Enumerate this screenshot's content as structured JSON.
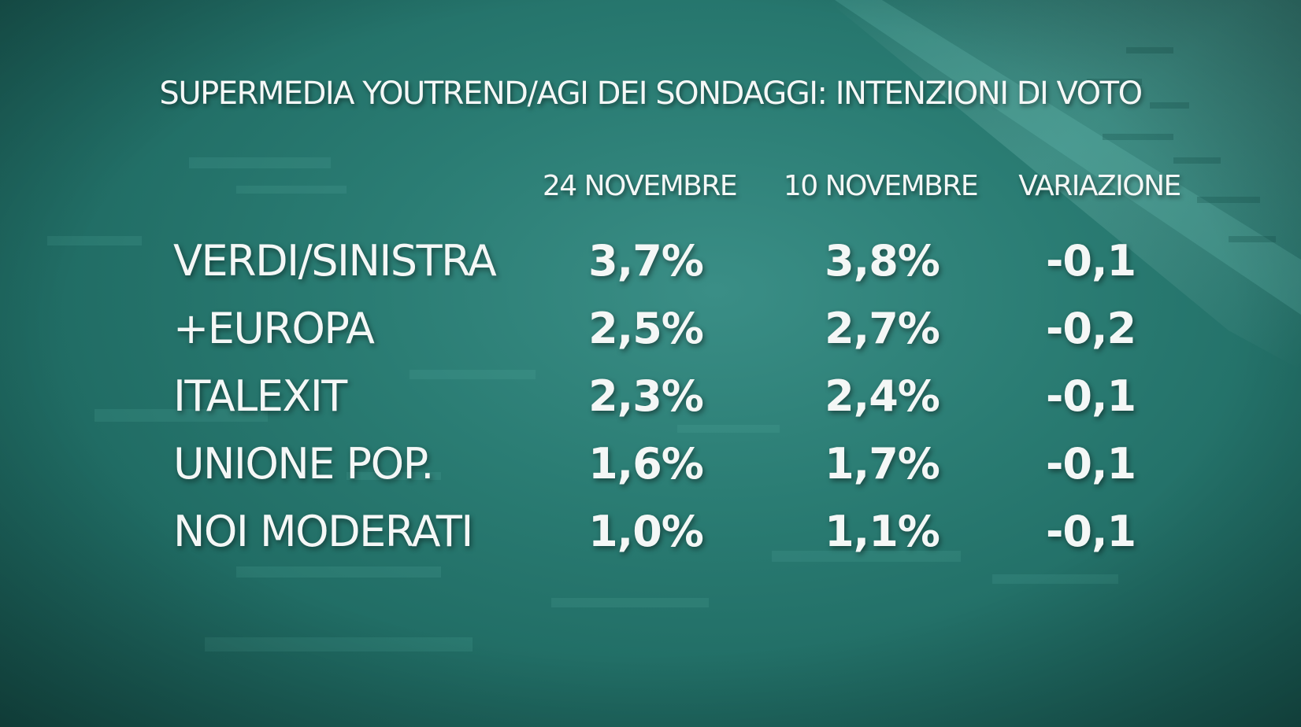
{
  "chart_data": {
    "type": "table",
    "title": "SUPERMEDIA YOUTREND/AGI DEI SONDAGGI: INTENZIONI DI VOTO",
    "columns": [
      "24 NOVEMBRE",
      "10 NOVEMBRE",
      "VARIAZIONE"
    ],
    "rows": [
      {
        "party": "VERDI/SINISTRA",
        "values": [
          "3,7%",
          "3,8%",
          "-0,1"
        ]
      },
      {
        "party": "+EUROPA",
        "values": [
          "2,5%",
          "2,7%",
          "-0,2"
        ]
      },
      {
        "party": "ITALEXIT",
        "values": [
          "2,3%",
          "2,4%",
          "-0,1"
        ]
      },
      {
        "party": "UNIONE POP.",
        "values": [
          "1,6%",
          "1,7%",
          "-0,1"
        ]
      },
      {
        "party": "NOI MODERATI",
        "values": [
          "1,0%",
          "1,1%",
          "-0,1"
        ]
      }
    ]
  },
  "colors": {
    "background": "#2a7c73",
    "background_dark": "#185a53",
    "text": "#f4f7f6"
  }
}
